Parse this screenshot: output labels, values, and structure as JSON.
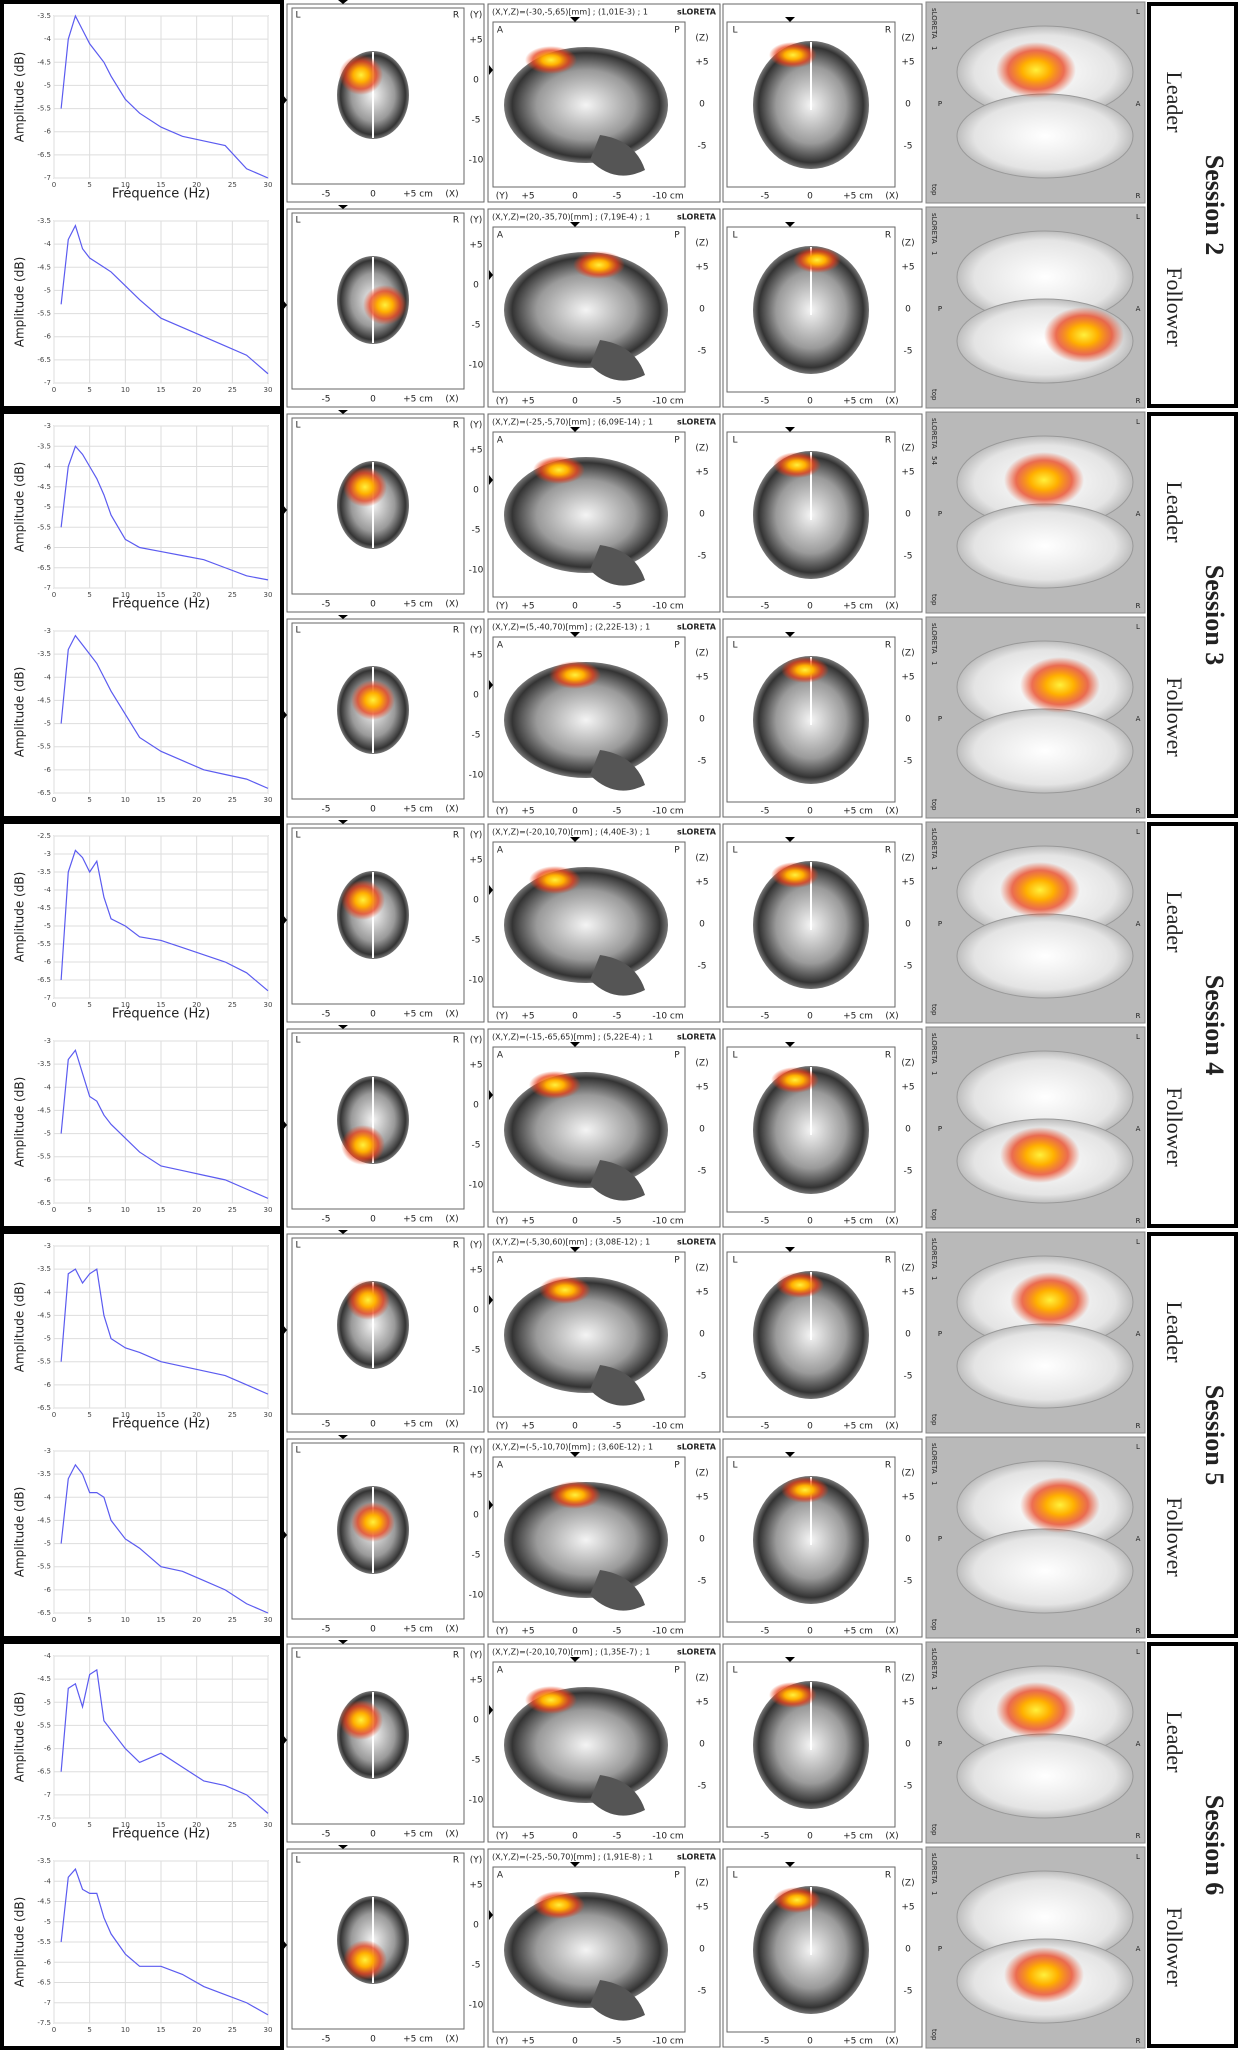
{
  "chart_data": [
    {
      "type": "line",
      "y_label": "Amplitude (dB)",
      "x_label": "Fréquence (Hz)",
      "color": "#5b5bf0",
      "grid": true,
      "x": [
        1,
        2,
        3,
        4,
        5,
        6,
        7,
        8,
        10,
        12,
        15,
        18,
        21,
        24,
        27,
        30
      ],
      "values": [
        -5.5,
        -4,
        -3.5,
        -3.8,
        -4.1,
        -4.3,
        -4.5,
        -4.8,
        -5.3,
        -5.6,
        -5.9,
        -6.1,
        -6.2,
        -6.3,
        -6.8,
        -7
      ],
      "xlim": [
        0,
        30
      ],
      "xticks": [
        0,
        5,
        10,
        15,
        20,
        25,
        30
      ],
      "ylim": [
        -7,
        -3.5
      ],
      "yticks": [
        -7,
        -6.5,
        -6,
        -5.5,
        -5,
        -4.5,
        -4,
        -3.5
      ]
    },
    {
      "type": "line",
      "y_label": "Amplitude (dB)",
      "color": "#5b5bf0",
      "grid": true,
      "x": [
        1,
        2,
        3,
        4,
        5,
        6,
        7,
        8,
        10,
        12,
        15,
        18,
        21,
        24,
        27,
        30
      ],
      "values": [
        -5.3,
        -3.9,
        -3.6,
        -4.1,
        -4.3,
        -4.4,
        -4.5,
        -4.6,
        -4.9,
        -5.2,
        -5.6,
        -5.8,
        -6,
        -6.2,
        -6.4,
        -6.8
      ],
      "xlim": [
        0,
        30
      ],
      "xticks": [
        0,
        5,
        10,
        15,
        20,
        25,
        30
      ],
      "ylim": [
        -7,
        -3.5
      ],
      "yticks": [
        -7,
        -6.5,
        -6,
        -5.5,
        -5,
        -4.5,
        -4,
        -3.5
      ]
    },
    {
      "type": "line",
      "y_label": "Amplitude (dB)",
      "x_label": "Fréquence (Hz)",
      "color": "#5b5bf0",
      "grid": true,
      "x": [
        1,
        2,
        3,
        4,
        5,
        6,
        7,
        8,
        10,
        12,
        15,
        18,
        21,
        24,
        27,
        30
      ],
      "values": [
        -5.5,
        -4,
        -3.5,
        -3.7,
        -4,
        -4.3,
        -4.7,
        -5.2,
        -5.8,
        -6,
        -6.1,
        -6.2,
        -6.3,
        -6.5,
        -6.7,
        -6.8
      ],
      "xlim": [
        0,
        30
      ],
      "xticks": [
        0,
        5,
        10,
        15,
        20,
        25,
        30
      ],
      "ylim": [
        -7,
        -3
      ],
      "yticks": [
        -7,
        -6.5,
        -6,
        -5.5,
        -5,
        -4.5,
        -4,
        -3.5,
        -3
      ]
    },
    {
      "type": "line",
      "y_label": "Amplitude (dB)",
      "color": "#5b5bf0",
      "grid": true,
      "x": [
        1,
        2,
        3,
        4,
        5,
        6,
        7,
        8,
        10,
        12,
        15,
        18,
        21,
        24,
        27,
        30
      ],
      "values": [
        -5,
        -3.4,
        -3.1,
        -3.3,
        -3.5,
        -3.7,
        -4,
        -4.3,
        -4.8,
        -5.3,
        -5.6,
        -5.8,
        -6,
        -6.1,
        -6.2,
        -6.4
      ],
      "xlim": [
        0,
        30
      ],
      "xticks": [
        0,
        5,
        10,
        15,
        20,
        25,
        30
      ],
      "ylim": [
        -6.5,
        -3
      ],
      "yticks": [
        -6.5,
        -6,
        -5.5,
        -5,
        -4.5,
        -4,
        -3.5,
        -3
      ]
    },
    {
      "type": "line",
      "y_label": "Amplitude (dB)",
      "x_label": "Fréquence (Hz)",
      "color": "#5b5bf0",
      "grid": true,
      "x": [
        1,
        2,
        3,
        4,
        5,
        6,
        7,
        8,
        10,
        12,
        15,
        18,
        21,
        24,
        27,
        30
      ],
      "values": [
        -6.5,
        -3.5,
        -2.9,
        -3.1,
        -3.5,
        -3.2,
        -4.2,
        -4.8,
        -5,
        -5.3,
        -5.4,
        -5.6,
        -5.8,
        -6,
        -6.3,
        -6.8
      ],
      "xlim": [
        0,
        30
      ],
      "xticks": [
        0,
        5,
        10,
        15,
        20,
        25,
        30
      ],
      "ylim": [
        -7,
        -2.5
      ],
      "yticks": [
        -7,
        -6.5,
        -6,
        -5.5,
        -5,
        -4.5,
        -4,
        -3.5,
        -3,
        -2.5
      ]
    },
    {
      "type": "line",
      "y_label": "Amplitude (dB)",
      "color": "#5b5bf0",
      "grid": true,
      "x": [
        1,
        2,
        3,
        4,
        5,
        6,
        7,
        8,
        10,
        12,
        15,
        18,
        21,
        24,
        27,
        30
      ],
      "values": [
        -5,
        -3.4,
        -3.2,
        -3.7,
        -4.2,
        -4.3,
        -4.6,
        -4.8,
        -5.1,
        -5.4,
        -5.7,
        -5.8,
        -5.9,
        -6,
        -6.2,
        -6.4
      ],
      "xlim": [
        0,
        30
      ],
      "xticks": [
        0,
        5,
        10,
        15,
        20,
        25,
        30
      ],
      "ylim": [
        -6.5,
        -3
      ],
      "yticks": [
        -6.5,
        -6,
        -5.5,
        -5,
        -4.5,
        -4,
        -3.5,
        -3
      ]
    },
    {
      "type": "line",
      "y_label": "Amplitude (dB)",
      "x_label": "Fréquence (Hz)",
      "color": "#5b5bf0",
      "grid": true,
      "x": [
        1,
        2,
        3,
        4,
        5,
        6,
        7,
        8,
        10,
        12,
        15,
        18,
        21,
        24,
        27,
        30
      ],
      "values": [
        -5.5,
        -3.6,
        -3.5,
        -3.8,
        -3.6,
        -3.5,
        -4.5,
        -5,
        -5.2,
        -5.3,
        -5.5,
        -5.6,
        -5.7,
        -5.8,
        -6,
        -6.2
      ],
      "xlim": [
        0,
        30
      ],
      "xticks": [
        0,
        5,
        10,
        15,
        20,
        25,
        30
      ],
      "ylim": [
        -6.5,
        -3
      ],
      "yticks": [
        -6.5,
        -6,
        -5.5,
        -5,
        -4.5,
        -4,
        -3.5,
        -3
      ]
    },
    {
      "type": "line",
      "y_label": "Amplitude (dB)",
      "color": "#5b5bf0",
      "grid": true,
      "x": [
        1,
        2,
        3,
        4,
        5,
        6,
        7,
        8,
        10,
        12,
        15,
        18,
        21,
        24,
        27,
        30
      ],
      "values": [
        -5,
        -3.6,
        -3.3,
        -3.5,
        -3.9,
        -3.9,
        -4,
        -4.5,
        -4.9,
        -5.1,
        -5.5,
        -5.6,
        -5.8,
        -6,
        -6.3,
        -6.5
      ],
      "xlim": [
        0,
        30
      ],
      "xticks": [
        0,
        5,
        10,
        15,
        20,
        25,
        30
      ],
      "ylim": [
        -6.5,
        -3
      ],
      "yticks": [
        -6.5,
        -6,
        -5.5,
        -5,
        -4.5,
        -4,
        -3.5,
        -3
      ]
    },
    {
      "type": "line",
      "y_label": "Amplitude (dB)",
      "x_label": "Fréquence (Hz)",
      "color": "#5b5bf0",
      "grid": true,
      "x": [
        1,
        2,
        3,
        4,
        5,
        6,
        7,
        8,
        10,
        12,
        15,
        18,
        21,
        24,
        27,
        30
      ],
      "values": [
        -6.5,
        -4.7,
        -4.6,
        -5.1,
        -4.4,
        -4.3,
        -5.4,
        -5.6,
        -6,
        -6.3,
        -6.1,
        -6.4,
        -6.7,
        -6.8,
        -7,
        -7.4
      ],
      "xlim": [
        0,
        30
      ],
      "xticks": [
        0,
        5,
        10,
        15,
        20,
        25,
        30
      ],
      "ylim": [
        -7.5,
        -4
      ],
      "yticks": [
        -7.5,
        -7,
        -6.5,
        -6,
        -5.5,
        -5,
        -4.5,
        -4
      ]
    },
    {
      "type": "line",
      "y_label": "Amplitude (dB)",
      "color": "#5b5bf0",
      "grid": true,
      "x": [
        1,
        2,
        3,
        4,
        5,
        6,
        7,
        8,
        10,
        12,
        15,
        18,
        21,
        24,
        27,
        30
      ],
      "values": [
        -5.5,
        -3.9,
        -3.7,
        -4.2,
        -4.3,
        -4.3,
        -4.9,
        -5.3,
        -5.8,
        -6.1,
        -6.1,
        -6.3,
        -6.6,
        -6.8,
        -7,
        -7.3
      ],
      "xlim": [
        0,
        30
      ],
      "xticks": [
        0,
        5,
        10,
        15,
        20,
        25,
        30
      ],
      "ylim": [
        -7.5,
        -3.5
      ],
      "yticks": [
        -7.5,
        -7,
        -6.5,
        -6,
        -5.5,
        -5,
        -4.5,
        -4,
        -3.5
      ]
    }
  ],
  "sessions": [
    {
      "label": "Session 2",
      "roles": [
        "Leader",
        "Follower"
      ]
    },
    {
      "label": "Session 3",
      "roles": [
        "Leader",
        "Follower"
      ]
    },
    {
      "label": "Session 4",
      "roles": [
        "Leader",
        "Follower"
      ]
    },
    {
      "label": "Session 5",
      "roles": [
        "Leader",
        "Follower"
      ]
    },
    {
      "label": "Session 6",
      "roles": [
        "Leader",
        "Follower"
      ]
    }
  ],
  "panels": [
    {
      "coordinates": "(X,Y,Z)=(-30,-5,65)[mm] ; (1,01E-3) ; 1",
      "index_label": "1"
    },
    {
      "coordinates": "(X,Y,Z)=(20,-35,70)[mm] ; (7,19E-4) ; 1",
      "index_label": "1"
    },
    {
      "coordinates": "(X,Y,Z)=(-25,-5,70)[mm] ; (6,09E-14) ; 1",
      "index_label": "54"
    },
    {
      "coordinates": "(X,Y,Z)=(5,-40,70)[mm] ; (2,22E-13) ; 1",
      "index_label": "1"
    },
    {
      "coordinates": "(X,Y,Z)=(-20,10,70)[mm] ; (4,40E-3) ; 1",
      "index_label": "1"
    },
    {
      "coordinates": "(X,Y,Z)=(-15,-65,65)[mm] ; (5,22E-4) ; 1",
      "index_label": "1"
    },
    {
      "coordinates": "(X,Y,Z)=(-5,30,60)[mm] ; (3,08E-12) ; 1",
      "index_label": "1"
    },
    {
      "coordinates": "(X,Y,Z)=(-5,-10,70)[mm] ; (3,60E-12) ; 1",
      "index_label": "1"
    },
    {
      "coordinates": "(X,Y,Z)=(-20,10,70)[mm] ; (1,35E-7) ; 1",
      "index_label": "1"
    },
    {
      "coordinates": "(X,Y,Z)=(-25,-50,70)[mm] ; (1,91E-8) ; 1",
      "index_label": "1"
    }
  ],
  "slice_labels": {
    "method": "sLORETA",
    "axial": {
      "left": "L",
      "right": "R",
      "axis": "(Y)",
      "side_ticks": [
        "+5",
        "0",
        "-5",
        "-10"
      ],
      "bottom_ticks": [
        "-5",
        "0",
        "+5 cm",
        "(X)"
      ]
    },
    "sagittal": {
      "left": "A",
      "right": "P",
      "axis": "(Z)",
      "side_ticks": [
        "+5",
        "0",
        "-5"
      ],
      "bottom_ticks": [
        "(Y)",
        "+5",
        "0",
        "-5",
        "-10 cm"
      ]
    },
    "coronal": {
      "left": "L",
      "right": "R",
      "axis": "(Z)",
      "side_ticks": [
        "+5",
        "0",
        "-5"
      ],
      "bottom_ticks": [
        "-5",
        "0",
        "+5 cm",
        "(X)"
      ]
    },
    "render": {
      "top": "L",
      "mid_left": "P",
      "mid_right": "A",
      "bottom": "R",
      "view": "top"
    }
  }
}
